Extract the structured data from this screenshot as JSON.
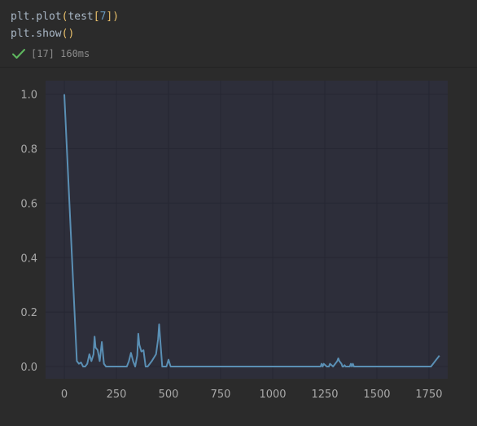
{
  "code": {
    "line1": {
      "fn": "plt.plot",
      "open": "(",
      "arg": "test",
      "bopen": "[",
      "index": "7",
      "bclose": "]",
      "close": ")"
    },
    "line2": {
      "fn": "plt.show",
      "open": "(",
      "close": ")"
    }
  },
  "status": {
    "icon": "checkmark-icon",
    "text": "[17] 160ms",
    "color": "#5fb85f"
  },
  "chart_data": {
    "type": "line",
    "title": "",
    "xlabel": "",
    "ylabel": "",
    "xlim": [
      -90,
      1840
    ],
    "ylim": [
      -0.045,
      1.05
    ],
    "xticks": [
      0,
      250,
      500,
      750,
      1000,
      1250,
      1500,
      1750
    ],
    "xtick_labels": [
      "0",
      "250",
      "500",
      "750",
      "1000",
      "1250",
      "1500",
      "1750"
    ],
    "yticks": [
      0.0,
      0.2,
      0.4,
      0.6,
      0.8,
      1.0
    ],
    "ytick_labels": [
      "0.0",
      "0.2",
      "0.4",
      "0.6",
      "0.8",
      "1.0"
    ],
    "grid": true,
    "line_color": "#5a8fb4",
    "series": [
      {
        "x": [
          0,
          60,
          70,
          80,
          90,
          100,
          110,
          120,
          130,
          140,
          145,
          150,
          160,
          170,
          180,
          190,
          200,
          240,
          300,
          310,
          320,
          330,
          340,
          350,
          355,
          360,
          370,
          380,
          390,
          400,
          410,
          420,
          440,
          450,
          455,
          460,
          470,
          480,
          490,
          500,
          510,
          520,
          700,
          900,
          1100,
          1230,
          1235,
          1240,
          1245,
          1260,
          1270,
          1275,
          1290,
          1300,
          1310,
          1315,
          1320,
          1330,
          1335,
          1340,
          1345,
          1350,
          1370,
          1375,
          1380,
          1385,
          1390,
          1400,
          1600,
          1760,
          1780,
          1800
        ],
        "y": [
          1.0,
          0.02,
          0.01,
          0.015,
          0.0,
          0.0,
          0.01,
          0.045,
          0.02,
          0.045,
          0.11,
          0.07,
          0.06,
          0.02,
          0.09,
          0.01,
          0.0,
          0.0,
          0.0,
          0.02,
          0.05,
          0.02,
          0.0,
          0.04,
          0.12,
          0.08,
          0.055,
          0.06,
          0.0,
          0.0,
          0.01,
          0.02,
          0.045,
          0.1,
          0.155,
          0.1,
          0.0,
          0.0,
          0.0,
          0.025,
          0.0,
          0.0,
          0.0,
          0.0,
          0.0,
          0.0,
          0.01,
          0.0,
          0.01,
          0.0,
          0.0,
          0.01,
          0.0,
          0.01,
          0.02,
          0.03,
          0.02,
          0.01,
          0.0,
          0.0,
          0.005,
          0.0,
          0.0,
          0.01,
          0.0,
          0.01,
          0.0,
          0.0,
          0.0,
          0.0,
          0.02,
          0.04
        ]
      }
    ]
  }
}
